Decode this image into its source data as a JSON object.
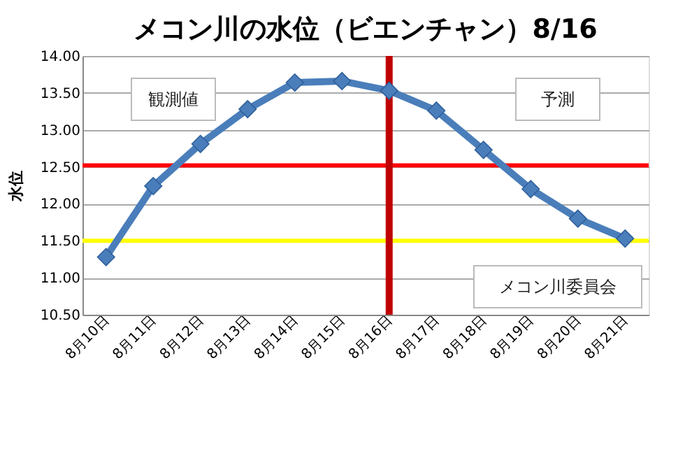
{
  "chart_data": {
    "type": "line",
    "title": "メコン川の水位（ビエンチャン）8/16",
    "ylabel": "水位",
    "categories": [
      "8月10日",
      "8月11日",
      "8月12日",
      "8月13日",
      "8月14日",
      "8月15日",
      "8月16日",
      "8月17日",
      "8月18日",
      "8月19日",
      "8月20日",
      "8月21日"
    ],
    "series": [
      {
        "color": "#4a7ebb",
        "values": [
          11.28,
          12.24,
          12.81,
          13.28,
          13.64,
          13.66,
          13.53,
          13.26,
          12.73,
          12.2,
          11.8,
          11.53
        ]
      }
    ],
    "ylim": [
      10.5,
      14.0
    ],
    "yticks": [
      {
        "value": 10.5,
        "label": "10.50"
      },
      {
        "value": 11.0,
        "label": "11.00"
      },
      {
        "value": 11.5,
        "label": "11.50"
      },
      {
        "value": 12.0,
        "label": "12.00"
      },
      {
        "value": 12.5,
        "label": "12.50"
      },
      {
        "value": 13.0,
        "label": "13.00"
      },
      {
        "value": 13.5,
        "label": "13.50"
      },
      {
        "value": 14.0,
        "label": "14.00"
      }
    ],
    "ref_lines": [
      {
        "axis": "y",
        "value": 12.52,
        "color": "#ff0000"
      },
      {
        "axis": "y",
        "value": 11.5,
        "color": "#ffff00"
      },
      {
        "axis": "x",
        "value": "8月16日",
        "color": "#c00000"
      }
    ],
    "annotations": [
      "観測値",
      "予測",
      "メコン川委員会"
    ],
    "grid": "y",
    "marker": "diamond",
    "line_style": "solid",
    "legend": false
  }
}
